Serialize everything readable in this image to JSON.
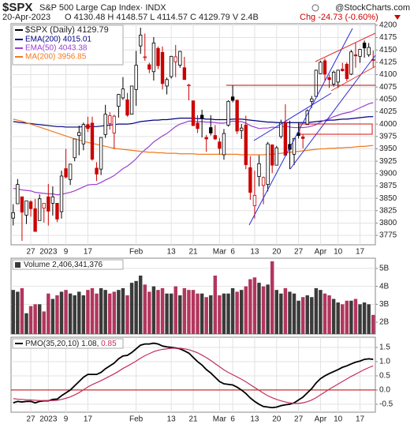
{
  "header": {
    "symbol": "$SPX",
    "name": "S&P 500 Large Cap Index· INDX",
    "source": "@StockCharts.com",
    "date": "20-Apr-2023",
    "ohlc": "O 4130.48 H 4148.57 L 4114.57 C 4129.79 V 2.4B",
    "change": "Chg -24.73 (-0.60%)"
  },
  "chart_data": [
    {
      "type": "candlestick",
      "legend": "$SPX (Daily) 4129.79",
      "categories": [
        null,
        null,
        null,
        null,
        "27",
        null,
        null,
        null,
        "2023",
        null,
        null,
        null,
        "9",
        null,
        null,
        null,
        null,
        "17",
        null,
        null,
        null,
        null,
        null,
        null,
        null,
        null,
        null,
        null,
        "Feb",
        null,
        null,
        null,
        null,
        null,
        null,
        null,
        "13",
        null,
        null,
        null,
        null,
        "21",
        null,
        null,
        null,
        null,
        null,
        "Mar",
        null,
        null,
        "6",
        null,
        null,
        null,
        null,
        "13",
        null,
        null,
        null,
        null,
        "20",
        null,
        null,
        null,
        null,
        "27",
        null,
        null,
        null,
        null,
        "Apr",
        null,
        null,
        null,
        "10",
        null,
        null,
        null,
        null,
        "17",
        null,
        null,
        null
      ],
      "open": [
        3810,
        3839,
        3853,
        3816,
        3843,
        3829,
        3805,
        3830,
        3853,
        3840,
        3840,
        3823,
        3910,
        3888,
        3932,
        3977,
        3960,
        3999,
        4002,
        3911,
        3909,
        3979,
        4001,
        3982,
        4036,
        4053,
        4049,
        4020,
        4070,
        4158,
        4136,
        4120,
        4106,
        4153,
        4145,
        4077,
        4096,
        4126,
        4119,
        4114,
        4078,
        4047,
        4002,
        4018,
        3973,
        3993,
        3977,
        3964,
        3938,
        3998,
        4055,
        4048,
        3987,
        3998,
        3912,
        3835,
        3894,
        3876,
        3878,
        3958,
        3917,
        3975,
        4003,
        3959,
        3939,
        3982,
        3974,
        3999,
        4046,
        4056,
        4102,
        4128,
        4094,
        4081,
        4085,
        4111,
        4121,
        4101,
        4140,
        4137,
        4164,
        4140,
        4130.48
      ],
      "high": [
        3838,
        3889,
        3853,
        3845,
        3846,
        3849,
        3858,
        3840,
        3879,
        3874,
        3840,
        3906,
        3950,
        3920,
        3970,
        3997,
        4003,
        4015,
        4015,
        3923,
        3973,
        4039,
        4024,
        4019,
        4061,
        4095,
        4063,
        4077,
        4148,
        4195,
        4183,
        4124,
        4176,
        4157,
        4157,
        4094,
        4138,
        4160,
        4148,
        4136,
        4081,
        4048,
        4018,
        4029,
        3978,
        4018,
        3998,
        3972,
        3990,
        4048,
        4078,
        4050,
        4000,
        4017,
        3935,
        3906,
        3937,
        3894,
        3964,
        3959,
        3956,
        4009,
        4040,
        4007,
        3972,
        4003,
        3979,
        4030,
        4057,
        4110,
        4128,
        4133,
        4100,
        4108,
        4110,
        4124,
        4125,
        4150,
        4164,
        4152,
        4169,
        4164,
        4148.57
      ],
      "low": [
        3795,
        3839,
        3764,
        3798,
        3813,
        3783,
        3805,
        3801,
        3795,
        3815,
        3802,
        3809,
        3890,
        3877,
        3925,
        3937,
        3947,
        3984,
        3926,
        3885,
        3897,
        3972,
        3989,
        3950,
        4013,
        4049,
        4015,
        4020,
        4037,
        4142,
        4128,
        4103,
        4088,
        4111,
        4070,
        4060,
        4092,
        4095,
        4114,
        4090,
        4048,
        3996,
        3982,
        3973,
        3944,
        3977,
        3968,
        3939,
        3928,
        3995,
        4044,
        3980,
        3970,
        3909,
        3847,
        3809,
        3874,
        3838,
        3864,
        3901,
        3917,
        3971,
        3937,
        3909,
        3917,
        3971,
        3951,
        3999,
        4033,
        4056,
        4101,
        4087,
        4073,
        4076,
        4073,
        4106,
        4087,
        4099,
        4114,
        4124,
        4134,
        4136,
        4114.57
      ],
      "close": [
        3821,
        3878,
        3822,
        3845,
        3829,
        3783,
        3849,
        3840,
        3824,
        3853,
        3808,
        3895,
        3893,
        3919,
        3970,
        3983,
        3999,
        3991,
        3929,
        3899,
        3973,
        4020,
        4017,
        4016,
        4060,
        4071,
        4018,
        4077,
        4119,
        4180,
        4136,
        4111,
        4164,
        4118,
        4082,
        4090,
        4137,
        4136,
        4147,
        4090,
        4079,
        3997,
        3991,
        4012,
        3970,
        3982,
        3970,
        3951,
        3981,
        4046,
        4048,
        3986,
        3992,
        3918,
        3862,
        3856,
        3920,
        3892,
        3960,
        3917,
        3952,
        4003,
        3937,
        3949,
        3971,
        3977,
        3971,
        4027,
        4051,
        4109,
        4125,
        4101,
        4090,
        4105,
        4109,
        4108,
        4092,
        4146,
        4138,
        4151,
        4154,
        4155,
        4129.79
      ],
      "up_color": "#000000",
      "down_color": "#cc0000",
      "series": [
        {
          "name": "EMA(200) 4015.01",
          "color": "#000080",
          "values": [
            4005,
            4004,
            4003,
            4002,
            4001,
            4000,
            3999,
            3998,
            3997,
            3996,
            3995,
            3995,
            3994,
            3994,
            3994,
            3994,
            3995,
            3995,
            3995,
            3995,
            3996,
            3997,
            3998,
            3999,
            4000,
            4000,
            4000,
            4001,
            4003,
            4005,
            4006,
            4007,
            4008,
            4008,
            4009,
            4009,
            4010,
            4011,
            4012,
            4012,
            4012,
            4012,
            4011,
            4011,
            4010,
            4010,
            4009,
            4009,
            4009,
            4009,
            4010,
            4010,
            4010,
            4009,
            4008,
            4007,
            4006,
            4005,
            4004,
            4004,
            4003,
            4003,
            4003,
            4003,
            4003,
            4003,
            4003,
            4003,
            4004,
            4005,
            4006,
            4007,
            4008,
            4008,
            4009,
            4010,
            4010,
            4011,
            4012,
            4013,
            4014,
            4015,
            4015.01
          ]
        },
        {
          "name": "EMA(50) 4043.38",
          "color": "#9b3fd0",
          "values": [
            3870,
            3869,
            3867,
            3866,
            3865,
            3862,
            3861,
            3860,
            3859,
            3859,
            3857,
            3858,
            3860,
            3862,
            3865,
            3869,
            3873,
            3877,
            3878,
            3878,
            3882,
            3887,
            3891,
            3896,
            3903,
            3910,
            3915,
            3922,
            3930,
            3940,
            3948,
            3955,
            3964,
            3970,
            3976,
            3981,
            3988,
            3995,
            4000,
            4003,
            4006,
            4006,
            4005,
            4005,
            4004,
            4004,
            4003,
            4002,
            4002,
            4004,
            4006,
            4005,
            4005,
            4002,
            3997,
            3994,
            3991,
            3992,
            3992,
            3994,
            3993,
            3994,
            3996,
            3994,
            3993,
            3993,
            3993,
            3994,
            3996,
            3999,
            4004,
            4008,
            4011,
            4015,
            4018,
            4021,
            4023,
            4025,
            4029,
            4033,
            4037,
            4041,
            4043.38
          ]
        },
        {
          "name": "MA(200) 3956.85",
          "color": "#f07a20",
          "values": [
            4010,
            4008,
            4006,
            4003,
            4000,
            3997,
            3994,
            3991,
            3988,
            3985,
            3982,
            3979,
            3976,
            3973,
            3970,
            3968,
            3965,
            3963,
            3961,
            3959,
            3957,
            3955,
            3953,
            3951,
            3950,
            3949,
            3948,
            3947,
            3946,
            3945,
            3944,
            3943,
            3943,
            3942,
            3942,
            3941,
            3941,
            3941,
            3940,
            3940,
            3940,
            3940,
            3939,
            3939,
            3939,
            3939,
            3939,
            3939,
            3939,
            3939,
            3939,
            3939,
            3938,
            3938,
            3938,
            3938,
            3938,
            3938,
            3939,
            3939,
            3940,
            3941,
            3942,
            3943,
            3944,
            3945,
            3946,
            3947,
            3948,
            3949,
            3950,
            3950,
            3951,
            3951,
            3952,
            3952,
            3953,
            3953,
            3954,
            3955,
            3955,
            3956,
            3956.85
          ]
        }
      ],
      "ylim": [
        3756,
        4203
      ],
      "yticks": [
        3775,
        3800,
        3825,
        3850,
        3875,
        3900,
        3925,
        3950,
        3975,
        4000,
        4025,
        4050,
        4075,
        4100,
        4125,
        4150,
        4175,
        4200
      ],
      "grid": true
    },
    {
      "type": "bar",
      "legend": "Volume",
      "value_label": "2,406,341,376",
      "values": [
        3.8,
        3.7,
        3.9,
        2.5,
        2.9,
        3.0,
        3.0,
        2.6,
        3.6,
        3.3,
        3.5,
        3.7,
        3.8,
        3.6,
        3.5,
        3.7,
        3.5,
        3.8,
        3.9,
        3.6,
        3.9,
        3.8,
        3.6,
        3.7,
        3.8,
        3.9,
        3.5,
        4.2,
        4.3,
        4.6,
        4.1,
        3.7,
        4.0,
        3.8,
        3.9,
        3.6,
        3.6,
        4.0,
        3.5,
        3.9,
        3.8,
        3.8,
        3.6,
        3.6,
        3.4,
        3.5,
        4.6,
        3.5,
        3.6,
        3.6,
        3.9,
        3.7,
        3.8,
        4.0,
        4.4,
        4.5,
        4.2,
        4.0,
        4.1,
        5.4,
        3.8,
        3.6,
        3.9,
        3.7,
        3.6,
        3.2,
        3.4,
        3.5,
        3.4,
        3.9,
        3.8,
        3.6,
        3.5,
        3.3,
        3.1,
        3.0,
        3.2,
        3.2,
        3.3,
        3.0,
        3.1,
        3.0,
        2.406341376
      ],
      "up_color": "#3a3a3a",
      "down_color": "#b2365e",
      "ylim": [
        1.34,
        5.57
      ],
      "yticks": [
        {
          "value": 2,
          "label": "2B"
        },
        {
          "value": 3,
          "label": "3B"
        },
        {
          "value": 4,
          "label": "4B"
        },
        {
          "value": 5,
          "label": "5B"
        }
      ],
      "grid": true
    },
    {
      "type": "line",
      "categories": [
        null,
        null,
        null,
        null,
        "27",
        null,
        null,
        null,
        "2023",
        null,
        null,
        null,
        "9",
        null,
        null,
        null,
        null,
        "17",
        null,
        null,
        null,
        null,
        null,
        null,
        null,
        null,
        null,
        null,
        "Feb",
        null,
        null,
        null,
        null,
        null,
        null,
        null,
        "13",
        null,
        null,
        null,
        null,
        "21",
        null,
        null,
        null,
        null,
        null,
        "Mar",
        null,
        null,
        "6",
        null,
        null,
        null,
        null,
        "13",
        null,
        null,
        null,
        null,
        "20",
        null,
        null,
        null,
        null,
        "27",
        null,
        null,
        null,
        null,
        "Apr",
        null,
        null,
        null,
        "10",
        null,
        null,
        null,
        null,
        "17",
        null,
        null,
        null
      ],
      "series": [
        {
          "name": "PMO(35,20,10) 1.08,",
          "color": "#000000",
          "values": [
            -0.45,
            -0.4,
            -0.42,
            -0.4,
            -0.4,
            -0.45,
            -0.4,
            -0.38,
            -0.38,
            -0.33,
            -0.32,
            -0.2,
            -0.1,
            0.0,
            0.15,
            0.3,
            0.45,
            0.55,
            0.55,
            0.55,
            0.62,
            0.75,
            0.85,
            0.95,
            1.1,
            1.2,
            1.22,
            1.32,
            1.45,
            1.58,
            1.62,
            1.62,
            1.65,
            1.62,
            1.55,
            1.52,
            1.5,
            1.48,
            1.45,
            1.38,
            1.3,
            1.15,
            1.0,
            0.88,
            0.72,
            0.6,
            0.45,
            0.3,
            0.22,
            0.2,
            0.18,
            0.1,
            0.0,
            -0.12,
            -0.28,
            -0.4,
            -0.5,
            -0.58,
            -0.6,
            -0.62,
            -0.6,
            -0.55,
            -0.52,
            -0.5,
            -0.45,
            -0.35,
            -0.25,
            -0.1,
            0.05,
            0.25,
            0.4,
            0.5,
            0.58,
            0.65,
            0.72,
            0.8,
            0.85,
            0.92,
            0.98,
            1.02,
            1.08,
            1.1,
            1.08
          ]
        },
        {
          "name": "0.85",
          "color": "#c0305a",
          "values": [
            -0.3,
            -0.32,
            -0.33,
            -0.34,
            -0.35,
            -0.36,
            -0.37,
            -0.37,
            -0.37,
            -0.37,
            -0.36,
            -0.33,
            -0.29,
            -0.24,
            -0.17,
            -0.09,
            0.01,
            0.11,
            0.19,
            0.26,
            0.33,
            0.41,
            0.49,
            0.57,
            0.66,
            0.76,
            0.84,
            0.93,
            1.02,
            1.12,
            1.21,
            1.28,
            1.35,
            1.4,
            1.43,
            1.45,
            1.47,
            1.47,
            1.47,
            1.45,
            1.42,
            1.37,
            1.31,
            1.23,
            1.14,
            1.04,
            0.93,
            0.82,
            0.71,
            0.62,
            0.54,
            0.46,
            0.38,
            0.29,
            0.19,
            0.09,
            -0.01,
            -0.11,
            -0.2,
            -0.27,
            -0.33,
            -0.38,
            -0.42,
            -0.45,
            -0.47,
            -0.47,
            -0.45,
            -0.41,
            -0.35,
            -0.27,
            -0.17,
            -0.07,
            0.03,
            0.12,
            0.21,
            0.3,
            0.39,
            0.48,
            0.56,
            0.64,
            0.72,
            0.79,
            0.85
          ]
        }
      ],
      "zero_line_color": "#c00000",
      "ylim": [
        -0.78,
        1.86
      ],
      "yticks": [
        1.5,
        {
          "value": 1,
          "label": "1.0"
        },
        0.5,
        {
          "value": 0,
          "label": "0.0"
        },
        -0.5
      ],
      "grid": true
    }
  ]
}
